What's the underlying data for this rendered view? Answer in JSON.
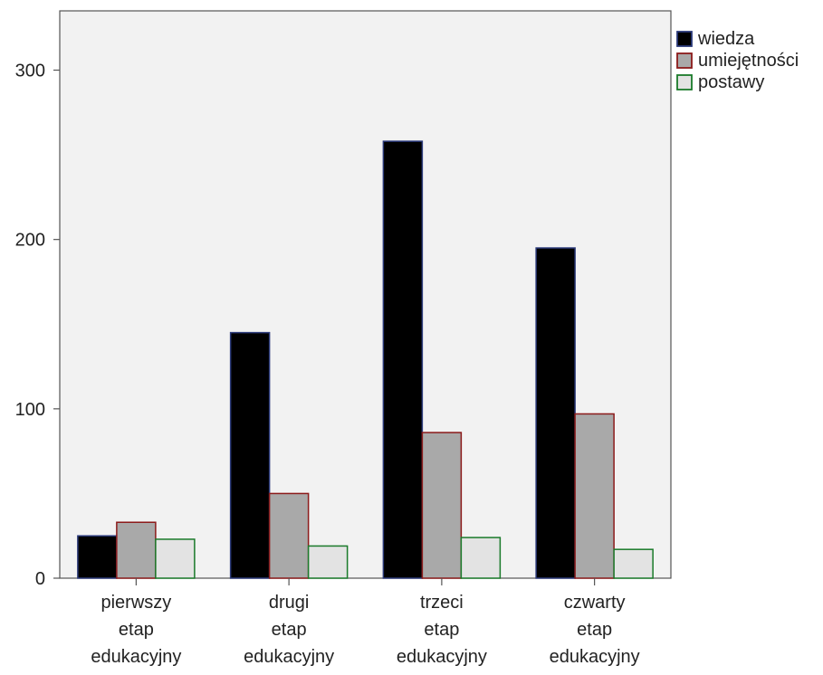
{
  "chart_data": {
    "type": "bar",
    "title": "",
    "xlabel": "",
    "ylabel": "",
    "ylim": [
      0,
      335
    ],
    "yticks": [
      0,
      100,
      200,
      300
    ],
    "categories": [
      [
        "pierwszy",
        "etap",
        "edukacyjny"
      ],
      [
        "drugi",
        "etap",
        "edukacyjny"
      ],
      [
        "trzeci",
        "etap",
        "edukacyjny"
      ],
      [
        "czwarty",
        "etap",
        "edukacyjny"
      ]
    ],
    "series": [
      {
        "name": "wiedza",
        "values": [
          25,
          145,
          258,
          195
        ],
        "fill": "#000000",
        "stroke": "#2b3a7a"
      },
      {
        "name": "umiejętności",
        "values": [
          33,
          50,
          86,
          97
        ],
        "fill": "#a9a9a9",
        "stroke": "#8b1a1a"
      },
      {
        "name": "postawy",
        "values": [
          23,
          19,
          24,
          17
        ],
        "fill": "#e3e3e3",
        "stroke": "#1a7a2a"
      }
    ],
    "legend_position": "top-right",
    "plot_background": "#f2f2f2",
    "grid": false
  }
}
